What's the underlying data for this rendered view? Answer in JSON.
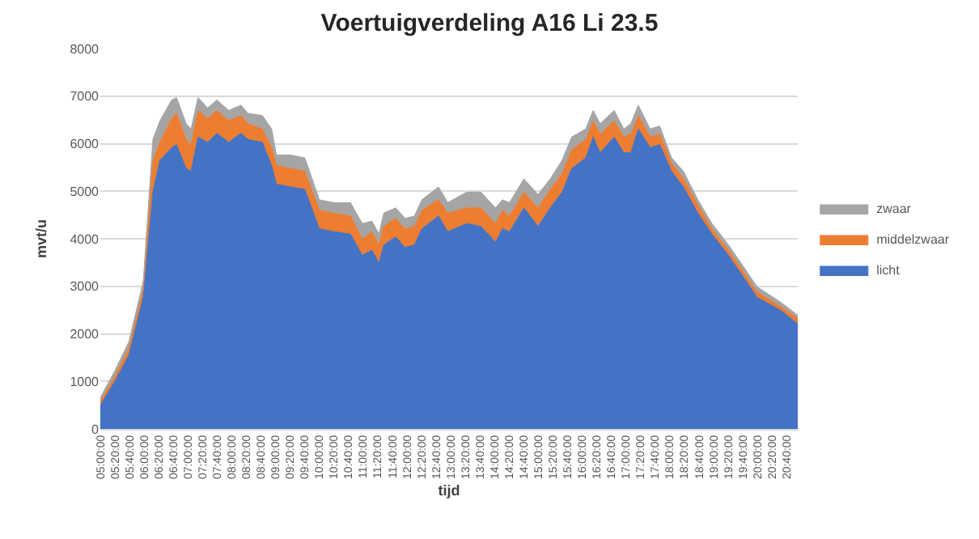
{
  "chart_data": {
    "type": "area",
    "title": "Voertuigverdeling A16 Li 23.5",
    "xlabel": "tijd",
    "ylabel": "mvt/u",
    "stacked": true,
    "grid": "y",
    "legend": "right",
    "x": [
      5.0,
      5.33,
      5.65,
      5.98,
      6.2,
      6.36,
      6.63,
      6.74,
      6.96,
      7.07,
      7.23,
      7.45,
      7.66,
      7.93,
      8.21,
      8.37,
      8.7,
      8.91,
      9.02,
      9.35,
      9.67,
      10.0,
      10.33,
      10.71,
      10.98,
      11.2,
      11.36,
      11.47,
      11.74,
      11.96,
      12.17,
      12.34,
      12.72,
      12.93,
      13.36,
      13.69,
      14.02,
      14.18,
      14.34,
      14.67,
      14.99,
      15.27,
      15.54,
      15.76,
      16.08,
      16.25,
      16.41,
      16.73,
      16.95,
      17.11,
      17.28,
      17.55,
      17.77,
      18.04,
      18.31,
      18.64,
      18.96,
      19.34,
      19.67,
      19.99,
      20.54,
      20.92
    ],
    "series": [
      {
        "name": "licht",
        "color": "#4472c4",
        "values": [
          500,
          1000,
          1550,
          2770,
          4980,
          5650,
          5920,
          5980,
          5480,
          5420,
          6140,
          6030,
          6220,
          6030,
          6220,
          6090,
          6030,
          5540,
          5150,
          5090,
          5040,
          4210,
          4150,
          4100,
          3650,
          3760,
          3490,
          3870,
          4040,
          3820,
          3870,
          4210,
          4480,
          4150,
          4320,
          4260,
          3930,
          4210,
          4150,
          4650,
          4260,
          4650,
          4980,
          5480,
          5700,
          6140,
          5810,
          6140,
          5810,
          5810,
          6310,
          5920,
          5980,
          5420,
          5090,
          4540,
          4100,
          3650,
          3210,
          2770,
          2490,
          2210
        ]
      },
      {
        "name": "middelzwaar",
        "color": "#ed7d31",
        "values": [
          80,
          100,
          140,
          160,
          650,
          380,
          610,
          660,
          610,
          560,
          560,
          500,
          480,
          450,
          370,
          330,
          280,
          380,
          390,
          390,
          380,
          390,
          390,
          380,
          340,
          390,
          380,
          390,
          390,
          390,
          390,
          390,
          340,
          390,
          330,
          390,
          390,
          390,
          330,
          330,
          390,
          390,
          390,
          390,
          390,
          340,
          390,
          340,
          330,
          390,
          280,
          220,
          220,
          170,
          170,
          170,
          110,
          110,
          110,
          110,
          80,
          110
        ]
      },
      {
        "name": "zwaar",
        "color": "#a5a5a5",
        "values": [
          80,
          120,
          140,
          170,
          460,
          450,
          390,
          330,
          330,
          330,
          270,
          220,
          220,
          220,
          220,
          220,
          280,
          390,
          220,
          280,
          280,
          220,
          220,
          280,
          330,
          220,
          230,
          280,
          220,
          220,
          220,
          220,
          270,
          220,
          330,
          330,
          330,
          220,
          280,
          280,
          280,
          220,
          280,
          270,
          220,
          220,
          220,
          220,
          170,
          220,
          220,
          170,
          170,
          110,
          160,
          110,
          110,
          110,
          110,
          110,
          90,
          70
        ]
      }
    ],
    "xlim": [
      5,
      20.92
    ],
    "xticks": [
      {
        "value": 5,
        "label": "05:00:00"
      },
      {
        "value": 5.3333,
        "label": "05:20:00"
      },
      {
        "value": 5.6667,
        "label": "05:40:00"
      },
      {
        "value": 6,
        "label": "06:00:00"
      },
      {
        "value": 6.3333,
        "label": "06:20:00"
      },
      {
        "value": 6.6667,
        "label": "06:40:00"
      },
      {
        "value": 7,
        "label": "07:00:00"
      },
      {
        "value": 7.3333,
        "label": "07:20:00"
      },
      {
        "value": 7.6667,
        "label": "07:40:00"
      },
      {
        "value": 8,
        "label": "08:00:00"
      },
      {
        "value": 8.3333,
        "label": "08:20:00"
      },
      {
        "value": 8.6667,
        "label": "08:40:00"
      },
      {
        "value": 9,
        "label": "09:00:00"
      },
      {
        "value": 9.3333,
        "label": "09:20:00"
      },
      {
        "value": 9.6667,
        "label": "09:40:00"
      },
      {
        "value": 10,
        "label": "10:00:00"
      },
      {
        "value": 10.3333,
        "label": "10:20:00"
      },
      {
        "value": 10.6667,
        "label": "10:40:00"
      },
      {
        "value": 11,
        "label": "11:00:00"
      },
      {
        "value": 11.3333,
        "label": "11:20:00"
      },
      {
        "value": 11.6667,
        "label": "11:40:00"
      },
      {
        "value": 12,
        "label": "12:00:00"
      },
      {
        "value": 12.3333,
        "label": "12:20:00"
      },
      {
        "value": 12.6667,
        "label": "12:40:00"
      },
      {
        "value": 13,
        "label": "13:00:00"
      },
      {
        "value": 13.3333,
        "label": "13:20:00"
      },
      {
        "value": 13.6667,
        "label": "13:40:00"
      },
      {
        "value": 14,
        "label": "14:00:00"
      },
      {
        "value": 14.3333,
        "label": "14:20:00"
      },
      {
        "value": 14.6667,
        "label": "14:40:00"
      },
      {
        "value": 15,
        "label": "15:00:00"
      },
      {
        "value": 15.3333,
        "label": "15:20:00"
      },
      {
        "value": 15.6667,
        "label": "15:40:00"
      },
      {
        "value": 16,
        "label": "16:00:00"
      },
      {
        "value": 16.3333,
        "label": "16:20:00"
      },
      {
        "value": 16.6667,
        "label": "16:40:00"
      },
      {
        "value": 17,
        "label": "17:00:00"
      },
      {
        "value": 17.3333,
        "label": "17:20:00"
      },
      {
        "value": 17.6667,
        "label": "17:40:00"
      },
      {
        "value": 18,
        "label": "18:00:00"
      },
      {
        "value": 18.3333,
        "label": "18:20:00"
      },
      {
        "value": 18.6667,
        "label": "18:40:00"
      },
      {
        "value": 19,
        "label": "19:00:00"
      },
      {
        "value": 19.3333,
        "label": "19:20:00"
      },
      {
        "value": 19.6667,
        "label": "19:40:00"
      },
      {
        "value": 20,
        "label": "20:00:00"
      },
      {
        "value": 20.3333,
        "label": "20:20:00"
      },
      {
        "value": 20.6667,
        "label": "20:40:00"
      }
    ],
    "ylim": [
      0,
      8000
    ],
    "yticks": [
      0,
      1000,
      2000,
      3000,
      4000,
      5000,
      6000,
      7000,
      8000
    ]
  }
}
